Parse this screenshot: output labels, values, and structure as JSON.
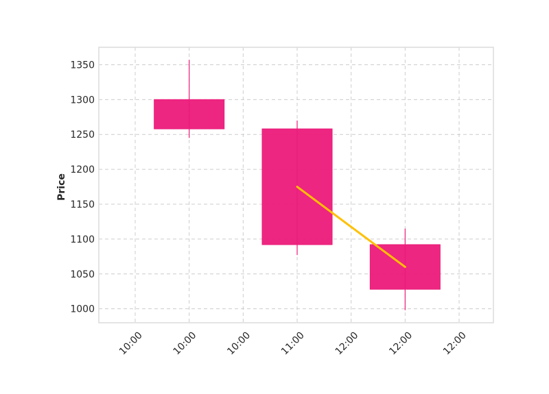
{
  "chart_data": {
    "type": "candlestick",
    "title": "",
    "xlabel": "",
    "ylabel": "Price",
    "ylim": [
      980,
      1375
    ],
    "grid": true,
    "x_tick_labels": [
      "10:00",
      "10:00",
      "10:00",
      "11:00",
      "12:00",
      "12:00",
      "12:00"
    ],
    "y_ticks": [
      1000,
      1050,
      1100,
      1150,
      1200,
      1250,
      1300,
      1350
    ],
    "candles": [
      {
        "x": 1,
        "open": 1300,
        "high": 1357,
        "low": 1245,
        "close": 1258
      },
      {
        "x": 3,
        "open": 1258,
        "high": 1270,
        "low": 1077,
        "close": 1092
      },
      {
        "x": 5,
        "open": 1092,
        "high": 1115,
        "low": 998,
        "close": 1028
      }
    ],
    "line": {
      "x": [
        3,
        5
      ],
      "values": [
        1175,
        1060
      ]
    },
    "colors": {
      "candle": "#ec1a7a",
      "line": "#ffc000",
      "grid": "#cccccc",
      "frame": "#dddddd"
    }
  }
}
